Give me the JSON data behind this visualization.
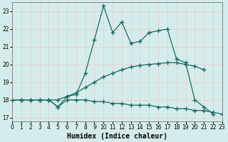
{
  "xlabel": "Humidex (Indice chaleur)",
  "ylabel": "",
  "bg_color": "#d4edec",
  "grid_color": "#c8dede",
  "line_color": "#1a6b60",
  "xlim": [
    0,
    23
  ],
  "ylim": [
    16.8,
    23.5
  ],
  "xticks": [
    0,
    1,
    2,
    3,
    4,
    5,
    6,
    7,
    8,
    9,
    10,
    11,
    12,
    13,
    14,
    15,
    16,
    17,
    18,
    19,
    20,
    21,
    22,
    23
  ],
  "yticks": [
    17,
    18,
    19,
    20,
    21,
    22,
    23
  ],
  "line1_x": [
    0,
    1,
    2,
    3,
    4,
    5,
    6,
    7,
    8,
    9,
    10,
    11,
    12,
    13,
    14,
    15,
    16,
    17,
    18,
    19,
    20,
    21,
    22,
    23
  ],
  "line1_y": [
    18.0,
    18.0,
    18.0,
    18.0,
    18.0,
    17.6,
    18.2,
    18.3,
    19.5,
    21.4,
    23.3,
    21.8,
    22.4,
    21.2,
    21.3,
    21.8,
    21.9,
    22.0,
    20.3,
    20.1,
    18.0,
    17.6,
    17.2,
    null
  ],
  "line2_x": [
    0,
    1,
    2,
    3,
    4,
    5,
    6,
    7,
    8,
    9,
    10,
    11,
    12,
    13,
    14,
    15,
    16,
    17,
    18,
    19,
    20,
    21,
    22,
    23
  ],
  "line2_y": [
    18.0,
    18.0,
    18.0,
    18.0,
    18.0,
    18.0,
    18.2,
    18.4,
    18.7,
    19.0,
    19.3,
    19.5,
    19.7,
    19.85,
    19.95,
    20.0,
    20.05,
    20.1,
    20.1,
    20.0,
    19.9,
    19.7,
    null,
    null
  ],
  "line3_x": [
    0,
    1,
    2,
    3,
    4,
    5,
    6,
    7,
    8,
    9,
    10,
    11,
    12,
    13,
    14,
    15,
    16,
    17,
    18,
    19,
    20,
    21,
    22,
    23
  ],
  "line3_y": [
    18.0,
    18.0,
    18.0,
    18.0,
    18.0,
    17.6,
    18.0,
    18.0,
    18.0,
    17.9,
    17.9,
    17.8,
    17.8,
    17.7,
    17.7,
    17.7,
    17.6,
    17.6,
    17.5,
    17.5,
    17.4,
    17.4,
    17.3,
    17.2
  ],
  "marker": "+",
  "markersize": 4,
  "markeredgewidth": 1.0,
  "linewidth": 0.9,
  "tick_fontsize": 5.5,
  "xlabel_fontsize": 7
}
